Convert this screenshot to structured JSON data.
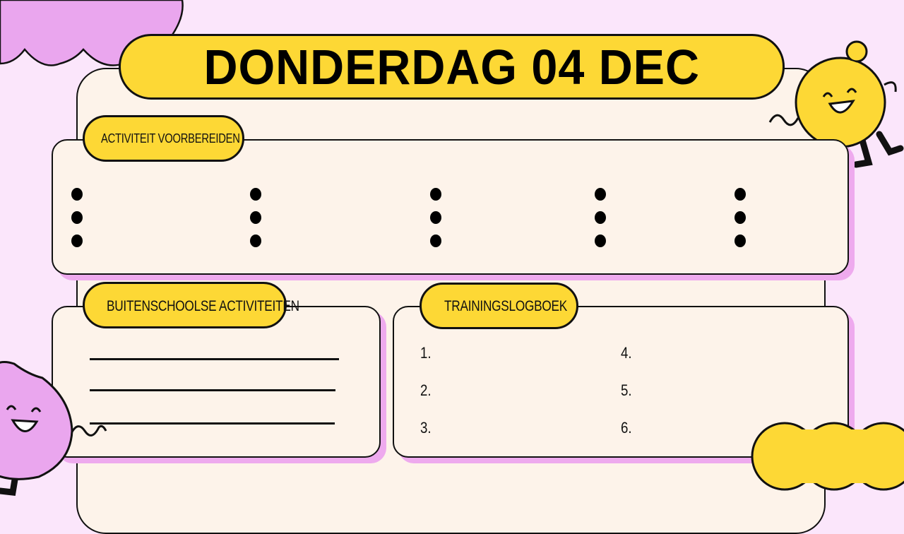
{
  "title": "DONDERDAG 04 DEC",
  "sections": {
    "prepare": {
      "label": "ACTIVITEIT VOORBEREIDEN",
      "bullet_columns": 5,
      "bullets_per_column": 3
    },
    "extracurricular": {
      "label": "BUITENSCHOOLSE ACTIVITEITEN",
      "blank_lines": 3
    },
    "training_log": {
      "label": "TRAININGSLOGBOEK",
      "items": [
        "1.",
        "2.",
        "3.",
        "4.",
        "5.",
        "6."
      ]
    }
  },
  "colors": {
    "background": "#fbe6fb",
    "card": "#fdf3ea",
    "accent_yellow": "#fdd835",
    "accent_pink": "#eeaaee",
    "outline": "#111111"
  }
}
